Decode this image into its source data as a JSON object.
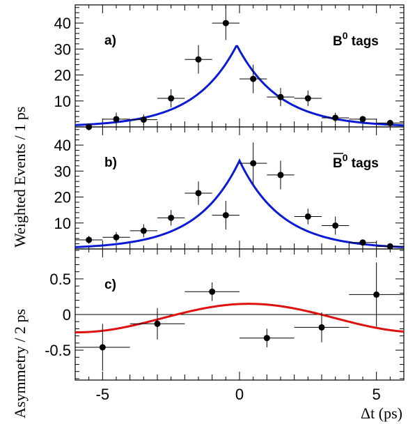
{
  "figure": {
    "xlabel": "Δt (ps)",
    "ylabel_top": "Weighted  Events / 1 ps",
    "ylabel_bottom": "Asymmetry / 2 ps",
    "xlim": [
      -6,
      6
    ],
    "x_ticks": [
      -5,
      0,
      5
    ]
  },
  "colors": {
    "fit_events": "#0b1bd4",
    "fit_asymmetry": "#e01010",
    "points": "#000000"
  },
  "chart_data": [
    {
      "type": "scatter",
      "panel_label": "a)",
      "tag_label": "B",
      "tag_superscript": "0",
      "tag_suffix": " tags",
      "tag_bar": false,
      "ylim": [
        0,
        47
      ],
      "y_ticks": [
        10,
        20,
        30,
        40
      ],
      "points": [
        {
          "x": -5.5,
          "y": 0.0,
          "ey": 0.0
        },
        {
          "x": -4.5,
          "y": 3.0,
          "ey": 2.5
        },
        {
          "x": -3.5,
          "y": 2.8,
          "ey": 2.0
        },
        {
          "x": -2.5,
          "y": 11.0,
          "ey": 3.5
        },
        {
          "x": -1.5,
          "y": 26.0,
          "ey": 5.5
        },
        {
          "x": -0.5,
          "y": 40.0,
          "ey": 6.5
        },
        {
          "x": 0.5,
          "y": 18.5,
          "ey": 5.5
        },
        {
          "x": 1.5,
          "y": 11.5,
          "ey": 3.5
        },
        {
          "x": 2.5,
          "y": 11.0,
          "ey": 3.0
        },
        {
          "x": 3.5,
          "y": 3.5,
          "ey": 2.0
        },
        {
          "x": 4.5,
          "y": 3.0,
          "ey": 1.0
        },
        {
          "x": 5.5,
          "y": 1.5,
          "ey": 1.0
        }
      ],
      "fit": {
        "amplitude": 31.5,
        "center": -0.1,
        "tau": 1.55
      }
    },
    {
      "type": "scatter",
      "panel_label": "b)",
      "tag_label": "B",
      "tag_superscript": "0",
      "tag_suffix": " tags",
      "tag_bar": true,
      "ylim": [
        0,
        47
      ],
      "y_ticks": [
        10,
        20,
        30,
        40
      ],
      "points": [
        {
          "x": -5.5,
          "y": 3.5,
          "ey": 1.5
        },
        {
          "x": -4.5,
          "y": 4.5,
          "ey": 2.0
        },
        {
          "x": -3.5,
          "y": 7.0,
          "ey": 2.5
        },
        {
          "x": -2.5,
          "y": 12.0,
          "ey": 3.0
        },
        {
          "x": -1.5,
          "y": 21.5,
          "ey": 4.5
        },
        {
          "x": -0.5,
          "y": 13.0,
          "ey": 5.5
        },
        {
          "x": 0.5,
          "y": 33.0,
          "ey": 8.0
        },
        {
          "x": 1.5,
          "y": 28.5,
          "ey": 5.5
        },
        {
          "x": 2.5,
          "y": 12.5,
          "ey": 3.0
        },
        {
          "x": 3.5,
          "y": 9.0,
          "ey": 3.5
        },
        {
          "x": 4.5,
          "y": 2.5,
          "ey": 1.0
        },
        {
          "x": 5.5,
          "y": 1.0,
          "ey": 0.5
        }
      ],
      "fit": {
        "amplitude": 34.0,
        "center": 0.0,
        "tau": 1.55
      }
    },
    {
      "type": "scatter",
      "panel_label": "c)",
      "ylim": [
        -0.92,
        0.92
      ],
      "y_ticks": [
        -0.5,
        0,
        0.5
      ],
      "y_tick_labels": [
        "-0.5",
        "0",
        "0.5"
      ],
      "points": [
        {
          "x": -5.0,
          "y": -0.46,
          "ey": 0.33,
          "ex": 1.0
        },
        {
          "x": -3.0,
          "y": -0.13,
          "ey": 0.22,
          "ex": 1.0
        },
        {
          "x": -1.0,
          "y": 0.32,
          "ey": 0.13,
          "ex": 1.0
        },
        {
          "x": 1.0,
          "y": -0.33,
          "ey": 0.13,
          "ex": 1.0
        },
        {
          "x": 3.0,
          "y": -0.18,
          "ey": 0.21,
          "ex": 1.0
        },
        {
          "x": 5.0,
          "y": 0.28,
          "ey": 0.45,
          "ex": 1.0
        }
      ],
      "fit": {
        "amplitude": 0.2,
        "frequency": 0.5,
        "phase": 1.4,
        "offset": -0.05
      }
    }
  ]
}
